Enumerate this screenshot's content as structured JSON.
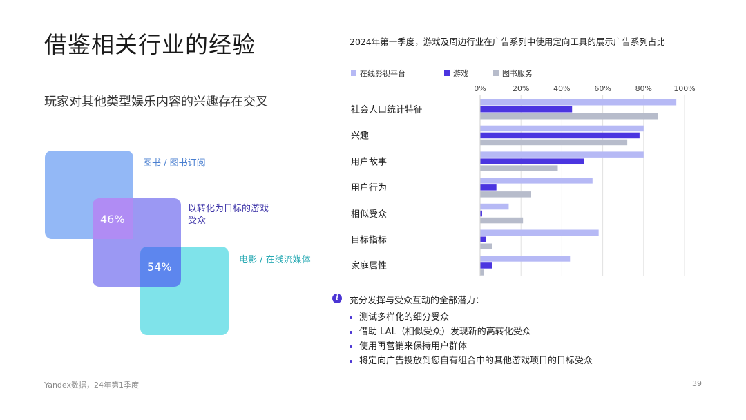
{
  "slide": {
    "title": "借鉴相关行业的经验",
    "subtitle": "玩家对其他类型娱乐内容的兴趣存在交叉",
    "source": "Yandex数据，24年第1季度",
    "page_number": "39"
  },
  "venn": {
    "books_label": "图书 / 图书订阅",
    "game_label": "以转化为目标的游戏受众",
    "movie_label": "电影 / 在线流媒体",
    "overlap_books_game": "46%",
    "overlap_game_movie": "54%",
    "colors": {
      "books": "#93b8f6",
      "game": "#9b98f3",
      "movie": "#7fe3ea"
    }
  },
  "chart_data": {
    "type": "bar",
    "orientation": "horizontal",
    "title": "2024年第一季度，游戏及周边行业在广告系列中使用定向工具的展示广告系列占比",
    "categories": [
      "社会人口统计特征",
      "兴趣",
      "用户故事",
      "用户行为",
      "相似受众",
      "目标指标",
      "家庭属性"
    ],
    "series": [
      {
        "name": "在线影视平台",
        "color": "#b6b9f5",
        "values": [
          96,
          80,
          80,
          55,
          14,
          58,
          44
        ]
      },
      {
        "name": "游戏",
        "color": "#4b35e0",
        "values": [
          45,
          78,
          51,
          8,
          1,
          3,
          6
        ]
      },
      {
        "name": "图书服务",
        "color": "#b7bccb",
        "values": [
          87,
          72,
          38,
          25,
          21,
          6,
          2
        ]
      }
    ],
    "x_ticks": [
      "0%",
      "20%",
      "40%",
      "60%",
      "80%",
      "100%"
    ],
    "xlim": [
      0,
      100
    ],
    "grid": true,
    "legend_position": "top"
  },
  "notes": {
    "icon": "info-icon",
    "heading": "充分发挥与受众互动的全部潜力：",
    "bullets": [
      "测试多样化的细分受众",
      "借助 LAL（相似受众）发现新的高转化受众",
      "使用再营销来保持用户群体",
      "将定向广告投放到您自有组合中的其他游戏项目的目标受众"
    ]
  }
}
